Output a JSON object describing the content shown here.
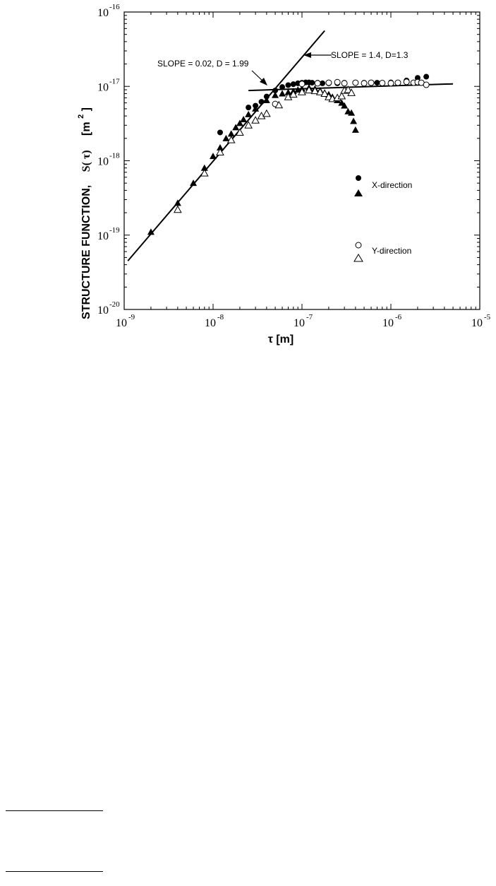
{
  "chart_data": {
    "type": "scatter",
    "x_scale": "log",
    "y_scale": "log",
    "xlim": [
      1e-09,
      1e-05
    ],
    "ylim": [
      1e-20,
      1e-16
    ],
    "xlabel": "τ [m]",
    "ylabel_parts": [
      "STRUCTURE FUNCTION,",
      "S( τ)",
      "[m",
      "2",
      "]"
    ],
    "x_ticks": [
      {
        "value": 1e-09,
        "base": "10",
        "exp": "-9"
      },
      {
        "value": 1e-08,
        "base": "10",
        "exp": "-8"
      },
      {
        "value": 1e-07,
        "base": "10",
        "exp": "-7"
      },
      {
        "value": 1e-06,
        "base": "10",
        "exp": "-6"
      },
      {
        "value": 1e-05,
        "base": "10",
        "exp": "-5"
      }
    ],
    "y_ticks": [
      {
        "value": 1e-20,
        "base": "10",
        "exp": "-20"
      },
      {
        "value": 1e-19,
        "base": "10",
        "exp": "-19"
      },
      {
        "value": 1e-18,
        "base": "10",
        "exp": "-18"
      },
      {
        "value": 1e-17,
        "base": "10",
        "exp": "-17"
      },
      {
        "value": 1e-16,
        "base": "10",
        "exp": "-16"
      }
    ],
    "legend": {
      "placement": "right",
      "groups": [
        {
          "label": "X-direction",
          "markers": [
            "filled-circle",
            "filled-triangle"
          ]
        },
        {
          "label": "Y-direction",
          "markers": [
            "open-circle",
            "open-triangle"
          ]
        }
      ]
    },
    "fit_lines": [
      {
        "label": "SLOPE = 1.4,  D=1.3",
        "x": [
          1.1e-09,
          1.8e-07
        ],
        "y": [
          4.5e-20,
          5.6e-17
        ]
      },
      {
        "label": "SLOPE = 0.02,  D = 1.99",
        "x": [
          2.5e-08,
          5e-06
        ],
        "y": [
          8.8e-18,
          1.08e-17
        ]
      }
    ],
    "series": [
      {
        "marker": "filled-circle",
        "points": [
          [
            1.2e-08,
            2.4e-18
          ],
          [
            2.5e-08,
            5.2e-18
          ],
          [
            3e-08,
            5.5e-18
          ],
          [
            3.5e-08,
            6.2e-18
          ],
          [
            4e-08,
            7.3e-18
          ],
          [
            5e-08,
            8.8e-18
          ],
          [
            6e-08,
            9.8e-18
          ],
          [
            7e-08,
            1.04e-17
          ],
          [
            8e-08,
            1.07e-17
          ],
          [
            9e-08,
            1.1e-17
          ],
          [
            1e-07,
            1.12e-17
          ],
          [
            1.1e-07,
            1.13e-17
          ],
          [
            1.2e-07,
            1.13e-17
          ],
          [
            1.3e-07,
            1.12e-17
          ],
          [
            1.5e-07,
            1.12e-17
          ],
          [
            1.7e-07,
            1.1e-17
          ],
          [
            2e-07,
            1.1e-17
          ],
          [
            2.5e-07,
            1.1e-17
          ],
          [
            3e-07,
            1.12e-17
          ],
          [
            4e-07,
            1.12e-17
          ],
          [
            5e-07,
            1.12e-17
          ],
          [
            7e-07,
            1.12e-17
          ],
          [
            1e-06,
            1.13e-17
          ],
          [
            1.5e-06,
            1.2e-17
          ],
          [
            2e-06,
            1.3e-17
          ],
          [
            2.5e-06,
            1.35e-17
          ]
        ]
      },
      {
        "marker": "filled-triangle",
        "points": [
          [
            2e-09,
            1.1e-19
          ],
          [
            4e-09,
            2.7e-19
          ],
          [
            6e-09,
            5e-19
          ],
          [
            8e-09,
            8e-19
          ],
          [
            1e-08,
            1.15e-18
          ],
          [
            1.2e-08,
            1.5e-18
          ],
          [
            1.4e-08,
            2e-18
          ],
          [
            1.6e-08,
            2.3e-18
          ],
          [
            1.8e-08,
            2.8e-18
          ],
          [
            2e-08,
            3.2e-18
          ],
          [
            2.2e-08,
            3.6e-18
          ],
          [
            2.5e-08,
            4.2e-18
          ],
          [
            3e-08,
            5e-18
          ],
          [
            4e-08,
            6.5e-18
          ],
          [
            5e-08,
            7.6e-18
          ],
          [
            6e-08,
            8e-18
          ],
          [
            7e-08,
            8.3e-18
          ],
          [
            8e-08,
            8.6e-18
          ],
          [
            9e-08,
            9e-18
          ],
          [
            1e-07,
            9.3e-18
          ],
          [
            1.2e-07,
            9.6e-18
          ],
          [
            1.4e-07,
            9.3e-18
          ],
          [
            1.6e-07,
            8.8e-18
          ],
          [
            1.8e-07,
            8.2e-18
          ],
          [
            2e-07,
            7.8e-18
          ],
          [
            2.2e-07,
            7.2e-18
          ],
          [
            2.5e-07,
            6.5e-18
          ],
          [
            2.8e-07,
            6e-18
          ],
          [
            3e-07,
            5.5e-18
          ],
          [
            3.3e-07,
            4.6e-18
          ],
          [
            3.6e-07,
            4.4e-18
          ],
          [
            3.8e-07,
            3.4e-18
          ],
          [
            4e-07,
            2.6e-18
          ]
        ]
      },
      {
        "marker": "open-circle",
        "points": [
          [
            5e-08,
            5.8e-18
          ],
          [
            1e-07,
            1.08e-17
          ],
          [
            1.5e-07,
            1.1e-17
          ],
          [
            2e-07,
            1.12e-17
          ],
          [
            2.5e-07,
            1.14e-17
          ],
          [
            3e-07,
            1.1e-17
          ],
          [
            4e-07,
            1.12e-17
          ],
          [
            5e-07,
            1.1e-17
          ],
          [
            6e-07,
            1.12e-17
          ],
          [
            8e-07,
            1.11e-17
          ],
          [
            1e-06,
            1.1e-17
          ],
          [
            1.2e-06,
            1.12e-17
          ],
          [
            1.5e-06,
            1.15e-17
          ],
          [
            1.8e-06,
            1.12e-17
          ],
          [
            2e-06,
            1.14e-17
          ],
          [
            2.2e-06,
            1.12e-17
          ],
          [
            2.5e-06,
            1.05e-17
          ]
        ]
      },
      {
        "marker": "open-triangle",
        "points": [
          [
            4e-09,
            2.2e-19
          ],
          [
            8e-09,
            6.8e-19
          ],
          [
            1.2e-08,
            1.3e-18
          ],
          [
            1.6e-08,
            1.9e-18
          ],
          [
            2e-08,
            2.4e-18
          ],
          [
            2.5e-08,
            3e-18
          ],
          [
            3e-08,
            3.5e-18
          ],
          [
            3.5e-08,
            4e-18
          ],
          [
            4e-08,
            4.3e-18
          ],
          [
            5.5e-08,
            5.6e-18
          ],
          [
            7e-08,
            7.2e-18
          ],
          [
            8e-08,
            7.8e-18
          ],
          [
            1e-07,
            8.4e-18
          ],
          [
            1.2e-07,
            8.9e-18
          ],
          [
            1.4e-07,
            8.7e-18
          ],
          [
            1.6e-07,
            8.4e-18
          ],
          [
            1.8e-07,
            8e-18
          ],
          [
            2e-07,
            7.2e-18
          ],
          [
            2.2e-07,
            6.8e-18
          ],
          [
            2.5e-07,
            7e-18
          ],
          [
            2.8e-07,
            7.4e-18
          ],
          [
            3e-07,
            8.8e-18
          ],
          [
            3.3e-07,
            9e-18
          ],
          [
            3.6e-07,
            8.2e-18
          ]
        ]
      }
    ]
  }
}
